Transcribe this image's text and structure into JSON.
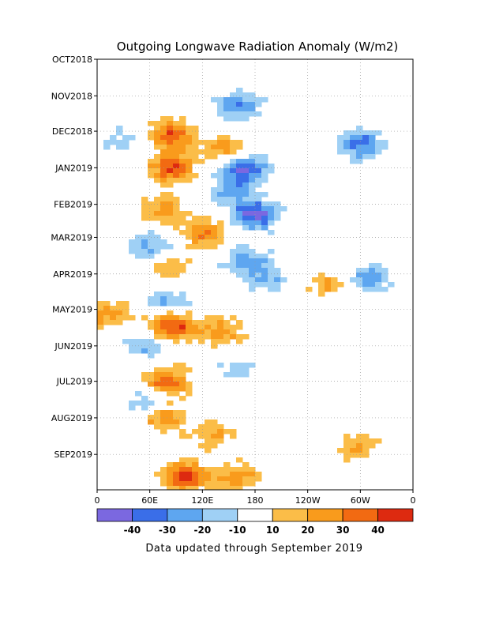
{
  "chart_data": {
    "type": "heatmap",
    "title": "Outgoing Longwave Radiation Anomaly (W/m2)",
    "x_axis": {
      "label": "",
      "ticks": [
        "0",
        "60E",
        "120E",
        "180",
        "120W",
        "60W",
        "0"
      ]
    },
    "y_axis": {
      "label": "",
      "ticks": [
        "OCT2018",
        "NOV2018",
        "DEC2018",
        "JAN2019",
        "FEB2019",
        "MAR2019",
        "APR2019",
        "MAY2019",
        "JUN2019",
        "JUL2019",
        "AUG2019",
        "SEP2019"
      ]
    },
    "colorbar": {
      "levels": [
        -50,
        -40,
        -30,
        -20,
        -10,
        10,
        20,
        30,
        40,
        50
      ],
      "tick_labels": [
        "-40",
        "-30",
        "-20",
        "-10",
        "10",
        "20",
        "30",
        "40"
      ],
      "colors": [
        "#7b68e0",
        "#3a6ee8",
        "#5ea6f0",
        "#9fd0f5",
        "#ffffff",
        "#fbbd48",
        "#f99b1c",
        "#f26a12",
        "#dd2a10"
      ]
    },
    "features": [
      {
        "lon": 160,
        "date": "2018-11-10",
        "value": -30
      },
      {
        "lon": 85,
        "date": "2018-12-05",
        "value": 40
      },
      {
        "lon": 25,
        "date": "2018-12-10",
        "value": -15
      },
      {
        "lon": 300,
        "date": "2018-12-12",
        "value": -35
      },
      {
        "lon": 145,
        "date": "2018-12-15",
        "value": 25
      },
      {
        "lon": 85,
        "date": "2019-01-01",
        "value": 40
      },
      {
        "lon": 170,
        "date": "2019-01-01",
        "value": -40
      },
      {
        "lon": 155,
        "date": "2019-01-20",
        "value": -25
      },
      {
        "lon": 75,
        "date": "2019-02-05",
        "value": 25
      },
      {
        "lon": 180,
        "date": "2019-02-10",
        "value": -45
      },
      {
        "lon": 120,
        "date": "2019-02-25",
        "value": 30
      },
      {
        "lon": 60,
        "date": "2019-03-10",
        "value": -25
      },
      {
        "lon": 170,
        "date": "2019-03-20",
        "value": -25
      },
      {
        "lon": 80,
        "date": "2019-03-25",
        "value": 20
      },
      {
        "lon": 195,
        "date": "2019-04-05",
        "value": -20
      },
      {
        "lon": 310,
        "date": "2019-04-05",
        "value": -25
      },
      {
        "lon": 265,
        "date": "2019-04-10",
        "value": 20
      },
      {
        "lon": 80,
        "date": "2019-04-25",
        "value": -20
      },
      {
        "lon": 10,
        "date": "2019-05-05",
        "value": 25
      },
      {
        "lon": 85,
        "date": "2019-05-15",
        "value": 45
      },
      {
        "lon": 140,
        "date": "2019-05-20",
        "value": 25
      },
      {
        "lon": 55,
        "date": "2019-06-01",
        "value": -20
      },
      {
        "lon": 160,
        "date": "2019-06-20",
        "value": -15
      },
      {
        "lon": 80,
        "date": "2019-07-01",
        "value": 35
      },
      {
        "lon": 55,
        "date": "2019-07-20",
        "value": -20
      },
      {
        "lon": 75,
        "date": "2019-08-01",
        "value": 30
      },
      {
        "lon": 130,
        "date": "2019-08-15",
        "value": 20
      },
      {
        "lon": 295,
        "date": "2019-08-25",
        "value": 20
      },
      {
        "lon": 100,
        "date": "2019-09-20",
        "value": 45
      },
      {
        "lon": 160,
        "date": "2019-09-20",
        "value": 25
      }
    ]
  },
  "footer": "Data updated through September 2019"
}
